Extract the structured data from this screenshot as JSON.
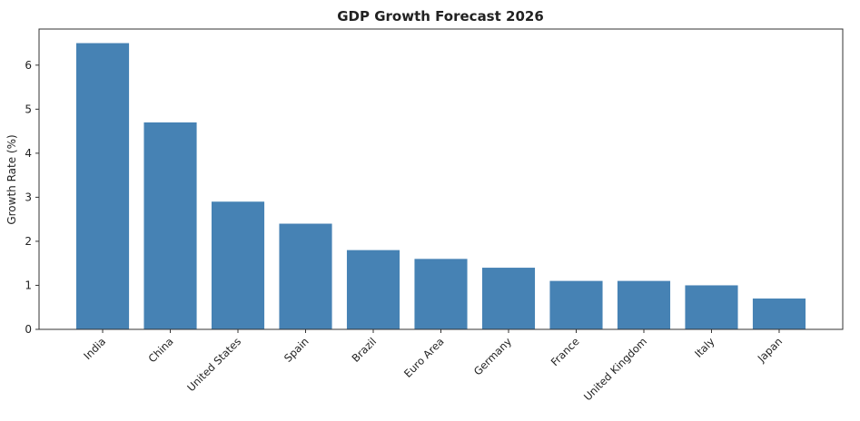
{
  "chart_data": {
    "type": "bar",
    "title": "GDP Growth Forecast 2026",
    "xlabel": "",
    "ylabel": "Growth Rate (%)",
    "categories": [
      "India",
      "China",
      "United States",
      "Spain",
      "Brazil",
      "Euro Area",
      "Germany",
      "France",
      "United Kingdom",
      "Italy",
      "Japan"
    ],
    "values": [
      6.5,
      4.7,
      2.9,
      2.4,
      1.8,
      1.6,
      1.4,
      1.1,
      1.1,
      1.0,
      0.7
    ],
    "ylim": [
      0,
      6.82
    ],
    "yticks": [
      0,
      1,
      2,
      3,
      4,
      5,
      6
    ],
    "grid": false,
    "bar_color": "#4682b4"
  }
}
